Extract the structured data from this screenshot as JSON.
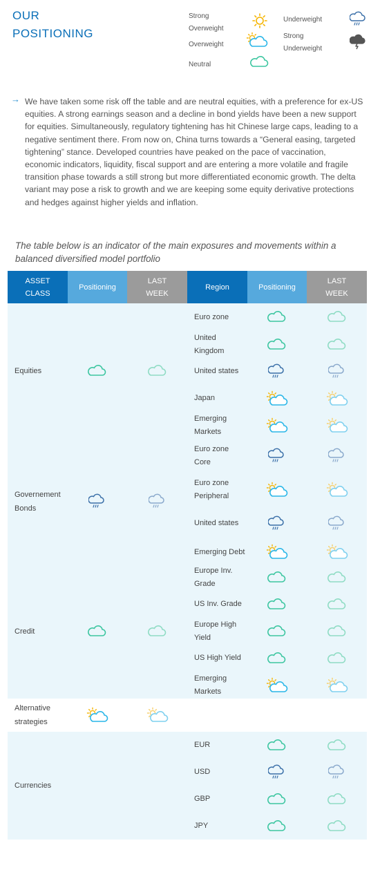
{
  "header": {
    "title_line1": "OUR",
    "title_line2": "POSITIONING"
  },
  "legend": {
    "strong_overweight_1": "Strong",
    "strong_overweight_2": "Overweight",
    "overweight": "Overweight",
    "neutral": "Neutral",
    "underweight": "Underweight",
    "strong_underweight_1": "Strong",
    "strong_underweight_2": "Underweight"
  },
  "intro": "We have taken some risk off the table and are neutral equities, with a preference for ex-US equities. A strong earnings season and a decline in bond yields have been a new support for equities. Simultaneously, regulatory tightening has hit Chinese large caps, leading to a negative sentiment there. From now on, China turns towards a “General easing, targeted tightening” stance. Developed countries have peaked on the pace of vaccination, economic indicators, liquidity, fiscal support and are entering a more volatile and fragile transition phase towards a still strong but more differentiated economic growth. The delta variant may pose a risk to growth and we are keeping some equity derivative protections and hedges against higher yields and inflation.",
  "subtitle": "The table below is an indicator of the main exposures and movements within a balanced diversified model portfolio",
  "table": {
    "headers": {
      "asset_1": "ASSET",
      "asset_2": "CLASS",
      "positioning": "Positioning",
      "last_1": "LAST",
      "last_2": "WEEK",
      "region": "Region",
      "positioning2": "Positioning",
      "last2_1": "LAST",
      "last2_2": "WEEK"
    },
    "groups": [
      {
        "asset_1": "Equities",
        "asset_2": "",
        "positioning": "neutral",
        "last_week": "neutral",
        "regions": [
          {
            "l1": "Euro zone",
            "l2": "",
            "positioning": "neutral",
            "last_week": "neutral"
          },
          {
            "l1": "United",
            "l2": "Kingdom",
            "positioning": "neutral",
            "last_week": "neutral"
          },
          {
            "l1": "United states",
            "l2": "",
            "positioning": "underweight",
            "last_week": "underweight"
          },
          {
            "l1": "Japan",
            "l2": "",
            "positioning": "overweight",
            "last_week": "overweight"
          },
          {
            "l1": "Emerging",
            "l2": "Markets",
            "positioning": "overweight",
            "last_week": "overweight"
          }
        ]
      },
      {
        "asset_1": "Governement",
        "asset_2": "Bonds",
        "positioning": "underweight",
        "last_week": "underweight",
        "regions": [
          {
            "l1": "Euro zone",
            "l2": "Core",
            "positioning": "underweight",
            "last_week": "underweight"
          },
          {
            "l1": "Euro zone",
            "l2": "Peripheral",
            "positioning": "overweight",
            "last_week": "overweight"
          },
          {
            "l1": "United states",
            "l2": "",
            "positioning": "underweight",
            "last_week": "underweight"
          },
          {
            "l1": "Emerging Debt",
            "l2": "",
            "positioning": "overweight",
            "last_week": "overweight"
          }
        ]
      },
      {
        "asset_1": "Credit",
        "asset_2": "",
        "positioning": "neutral",
        "last_week": "neutral",
        "regions": [
          {
            "l1": "Europe Inv.",
            "l2": "Grade",
            "positioning": "neutral",
            "last_week": "neutral"
          },
          {
            "l1": "US Inv. Grade",
            "l2": "",
            "positioning": "neutral",
            "last_week": "neutral"
          },
          {
            "l1": "Europe High",
            "l2": "Yield",
            "positioning": "neutral",
            "last_week": "neutral"
          },
          {
            "l1": "US High Yield",
            "l2": "",
            "positioning": "neutral",
            "last_week": "neutral"
          },
          {
            "l1": "Emerging",
            "l2": "Markets",
            "positioning": "overweight",
            "last_week": "overweight"
          }
        ]
      },
      {
        "asset_1": "Alternative",
        "asset_2": "strategies",
        "positioning": "overweight",
        "last_week": "overweight",
        "regions": []
      },
      {
        "asset_1": "Currencies",
        "asset_2": "",
        "positioning": "",
        "last_week": "",
        "regions": [
          {
            "l1": "EUR",
            "l2": "",
            "positioning": "neutral",
            "last_week": "neutral"
          },
          {
            "l1": "USD",
            "l2": "",
            "positioning": "underweight",
            "last_week": "underweight"
          },
          {
            "l1": "GBP",
            "l2": "",
            "positioning": "neutral",
            "last_week": "neutral"
          },
          {
            "l1": "JPY",
            "l2": "",
            "positioning": "neutral",
            "last_week": "neutral"
          }
        ]
      }
    ]
  },
  "colors": {
    "title": "#0a6fb8",
    "header_dark": "#0a6fb8",
    "header_light": "#56a9dd",
    "header_grey": "#9b9b9b",
    "row_shade": "#eaf6fb",
    "neutral_cloud": "#3cc6a0",
    "overweight_cloud": "#29b6e8",
    "sun": "#f5b400",
    "rain_cloud": "#3a6fa8",
    "storm_cloud": "#555555"
  }
}
